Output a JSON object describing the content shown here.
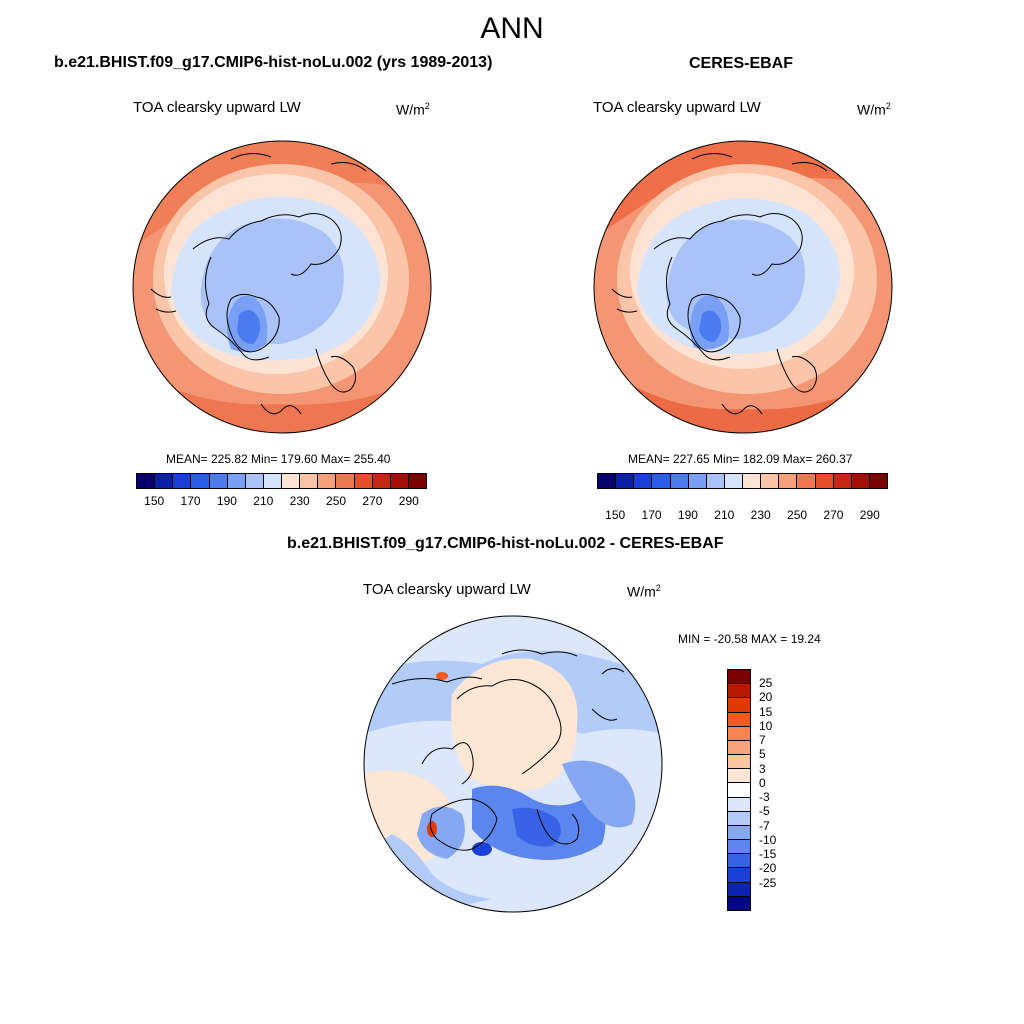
{
  "figure": {
    "title": "ANN"
  },
  "panels": {
    "model": {
      "title": "b.e21.BHIST.f09_g17.CMIP6-hist-noLu.002 (yrs 1989-2013)",
      "variable": "TOA clearsky upward LW",
      "units_base": "W/m",
      "units_exp": "2",
      "stats": "MEAN= 225.82  Min= 179.60  Max= 255.40"
    },
    "obs": {
      "title": "CERES-EBAF",
      "variable": "TOA clearsky upward LW",
      "units_base": "W/m",
      "units_exp": "2",
      "stats": "MEAN= 227.65  Min= 182.09  Max= 260.37"
    },
    "diff": {
      "title": "b.e21.BHIST.f09_g17.CMIP6-hist-noLu.002 - CERES-EBAF",
      "variable": "TOA clearsky upward LW",
      "units_base": "W/m",
      "units_exp": "2",
      "stats": "MIN = -20.58 MAX =  19.24"
    }
  },
  "colorbars": {
    "absolute": {
      "colors": [
        "#08006b",
        "#0c1fa8",
        "#1a3fd6",
        "#2b5ee8",
        "#4a7cf0",
        "#7aa0f5",
        "#a9c3f8",
        "#d6e4fb",
        "#fde3d4",
        "#fbc4a6",
        "#f7a07a",
        "#f07850",
        "#e54d2b",
        "#c62714",
        "#a50d06",
        "#7d0000"
      ],
      "tick_labels": [
        "150",
        "170",
        "190",
        "210",
        "230",
        "250",
        "270",
        "290"
      ]
    },
    "difference": {
      "colors": [
        "#7d0000",
        "#b51a00",
        "#e03a00",
        "#f55a1f",
        "#f7834f",
        "#f9a47a",
        "#fcc6a4",
        "#fde6d4",
        "#ffffff",
        "#dce7fb",
        "#b3cbf8",
        "#86a8f3",
        "#5b86ee",
        "#3863e6",
        "#1c40d6",
        "#0c22b0",
        "#030880"
      ],
      "tick_labels": [
        "25",
        "20",
        "15",
        "10",
        "7",
        "5",
        "3",
        "0",
        "-3",
        "-5",
        "-7",
        "-10",
        "-15",
        "-20",
        "-25"
      ]
    }
  }
}
